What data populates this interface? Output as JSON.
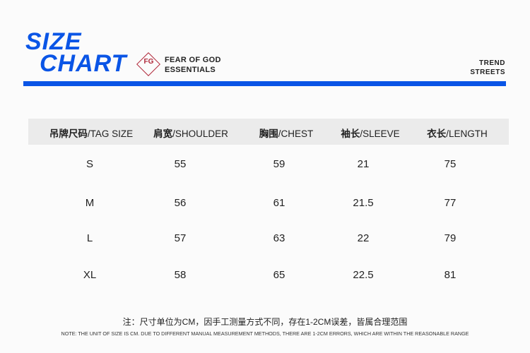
{
  "header": {
    "title_line1": "SIZE",
    "title_line2": "CHART",
    "logo_mark": "FG",
    "brand_line1": "FEAR OF GOD",
    "brand_line2": "ESSENTIALS",
    "store_line1": "TREND",
    "store_line2": "STREETS",
    "accent": "#0a55e6"
  },
  "table": {
    "columns": [
      {
        "cn": "吊牌尺码",
        "en": "/TAG SIZE"
      },
      {
        "cn": "肩宽",
        "en": "/SHOULDER"
      },
      {
        "cn": "胸围",
        "en": "/CHEST"
      },
      {
        "cn": "袖长",
        "en": "/SLEEVE"
      },
      {
        "cn": "衣长",
        "en": "/LENGTH"
      }
    ],
    "rows": [
      [
        "S",
        "55",
        "59",
        "21",
        "75"
      ],
      [
        "M",
        "56",
        "61",
        "21.5",
        "77"
      ],
      [
        "L",
        "57",
        "63",
        "22",
        "79"
      ],
      [
        "XL",
        "58",
        "65",
        "22.5",
        "81"
      ]
    ]
  },
  "notes": {
    "cn": "注：尺寸单位为CM，因手工测量方式不同，存在1-2CM误差，皆属合理范围",
    "en": "NOTE: THE UNIT OF SIZE IS CM. DUE TO DIFFERENT MANUAL MEASUREMENT METHODS, THERE ARE 1-2CM ERRORS, WHICH ARE WITHIN THE REASONABLE RANGE"
  }
}
